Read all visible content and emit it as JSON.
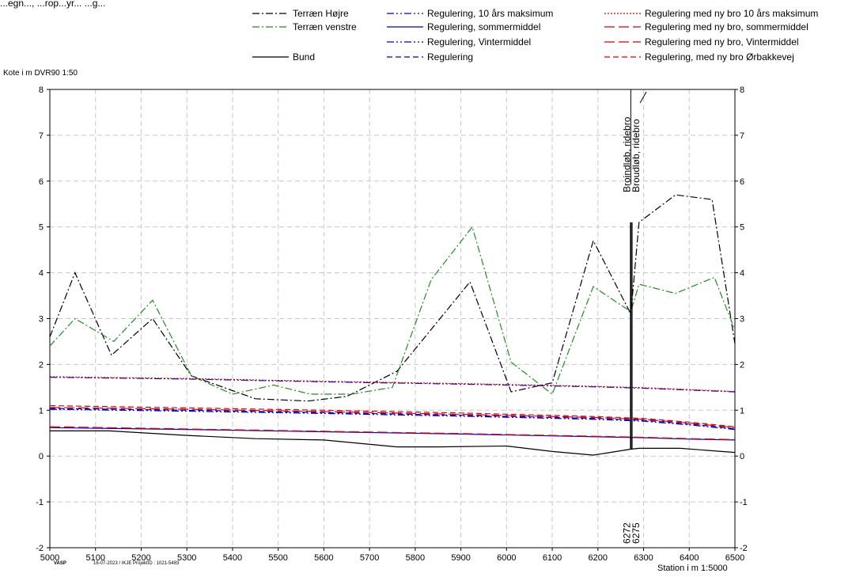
{
  "header": {
    "partial_text": "...egn..., ...rop...yr... ...g...",
    "ylabel": "Kote i m DVR90 1:50"
  },
  "footer": {
    "logo": "VASP",
    "meta": "16-07-2023 / IKJE   ProjektID : 1021-5483"
  },
  "chart_data": {
    "type": "line",
    "xlabel": "Station i m  1:5000",
    "ylabel": "Kote i m DVR90 1:50",
    "xlim": [
      5000,
      6500
    ],
    "ylim": [
      -2,
      8
    ],
    "xticks": [
      5000,
      5100,
      5200,
      5300,
      5400,
      5500,
      5600,
      5700,
      5800,
      5900,
      6000,
      6100,
      6200,
      6300,
      6400,
      6500
    ],
    "yticks": [
      -2,
      -1,
      0,
      1,
      2,
      3,
      4,
      5,
      6,
      7,
      8
    ],
    "grid": true,
    "legend_position": "top",
    "annotations": [
      {
        "x": 6272,
        "label": "Broindløb, ridebro",
        "station_label": "6272"
      },
      {
        "x": 6275,
        "label": "Broudløb, ridebro",
        "station_label": "6275"
      }
    ],
    "series": [
      {
        "name": "Terræn Højre",
        "color": "#000000",
        "dash": "dashdot",
        "x": [
          5000,
          5055,
          5135,
          5225,
          5310,
          5450,
          5565,
          5650,
          5760,
          5920,
          6010,
          6100,
          6190,
          6272,
          6290,
          6370,
          6450,
          6500
        ],
        "y": [
          2.6,
          4.0,
          2.2,
          3.0,
          1.75,
          1.25,
          1.2,
          1.3,
          1.85,
          3.8,
          1.4,
          1.6,
          4.7,
          3.1,
          5.1,
          5.7,
          5.6,
          2.45
        ]
      },
      {
        "name": "Terræn venstre",
        "color": "#228b22",
        "dash": "dashdot",
        "x": [
          5000,
          5055,
          5140,
          5225,
          5310,
          5400,
          5490,
          5570,
          5660,
          5750,
          5835,
          5925,
          6010,
          6100,
          6190,
          6272,
          6290,
          6370,
          6455,
          6500
        ],
        "y": [
          2.4,
          3.0,
          2.5,
          3.4,
          1.75,
          1.35,
          1.55,
          1.35,
          1.35,
          1.5,
          3.85,
          5.0,
          2.05,
          1.35,
          3.7,
          3.15,
          3.75,
          3.55,
          3.9,
          2.75
        ]
      },
      {
        "name": "Bund",
        "color": "#000000",
        "dash": "solid",
        "x": [
          5000,
          5130,
          5300,
          5450,
          5600,
          5760,
          5850,
          6000,
          6100,
          6190,
          6272,
          6290,
          6380,
          6500
        ],
        "y": [
          0.55,
          0.55,
          0.45,
          0.38,
          0.35,
          0.2,
          0.2,
          0.22,
          0.1,
          0.02,
          0.15,
          0.17,
          0.17,
          0.08
        ]
      },
      {
        "name": "Regulering, 10 års maksimum",
        "color": "#0000cc",
        "dash": "dashdotdot",
        "x": [
          5000,
          5300,
          5600,
          5900,
          6200,
          6300,
          6400,
          6500
        ],
        "y": [
          1.72,
          1.68,
          1.62,
          1.57,
          1.51,
          1.48,
          1.44,
          1.4
        ]
      },
      {
        "name": "Regulering, sommermiddel",
        "color": "#0000cc",
        "dash": "solid",
        "x": [
          5000,
          5300,
          5600,
          5900,
          6200,
          6300,
          6400,
          6500
        ],
        "y": [
          0.62,
          0.58,
          0.53,
          0.48,
          0.42,
          0.4,
          0.37,
          0.35
        ]
      },
      {
        "name": "Regulering, Vintermiddel",
        "color": "#0000cc",
        "dash": "dashdotdot",
        "x": [
          5000,
          5300,
          5600,
          5900,
          6200,
          6300,
          6400,
          6500
        ],
        "y": [
          1.02,
          0.98,
          0.93,
          0.87,
          0.8,
          0.76,
          0.68,
          0.58
        ]
      },
      {
        "name": "Regulering",
        "color": "#0000cc",
        "dash": "dashed",
        "x": [
          5000,
          5300,
          5600,
          5900,
          6200,
          6300,
          6400,
          6500
        ],
        "y": [
          1.04,
          1.0,
          0.95,
          0.89,
          0.82,
          0.78,
          0.7,
          0.6
        ]
      },
      {
        "name": "Regulering med ny bro 10 års maksimum",
        "color": "#dd0000",
        "dash": "dotted",
        "x": [
          5000,
          5300,
          5600,
          5900,
          6200,
          6300,
          6400,
          6500
        ],
        "y": [
          1.73,
          1.69,
          1.63,
          1.58,
          1.52,
          1.49,
          1.45,
          1.41
        ]
      },
      {
        "name": "Regulering med ny bro, sommermiddel",
        "color": "#dd0000",
        "dash": "longdash",
        "x": [
          5000,
          5300,
          5600,
          5900,
          6200,
          6300,
          6400,
          6500
        ],
        "y": [
          0.64,
          0.59,
          0.54,
          0.49,
          0.43,
          0.41,
          0.38,
          0.36
        ]
      },
      {
        "name": "Regulering med ny bro, Vintermiddel",
        "color": "#dd0000",
        "dash": "longdash",
        "x": [
          5000,
          5300,
          5600,
          5900,
          6200,
          6300,
          6400,
          6500
        ],
        "y": [
          1.06,
          1.02,
          0.97,
          0.91,
          0.84,
          0.8,
          0.72,
          0.62
        ]
      },
      {
        "name": "Regulering, med ny bro Ørbakkevej",
        "color": "#dd0000",
        "dash": "dashed",
        "x": [
          5000,
          5300,
          5600,
          5900,
          6200,
          6300,
          6400,
          6500
        ],
        "y": [
          1.1,
          1.05,
          1.0,
          0.94,
          0.86,
          0.82,
          0.74,
          0.64
        ]
      }
    ]
  }
}
